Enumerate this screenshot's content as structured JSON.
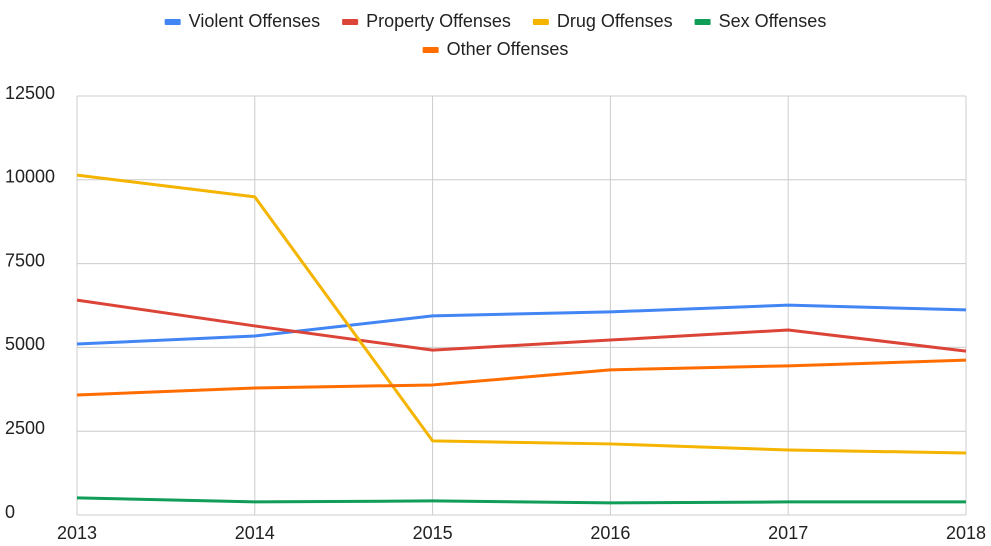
{
  "chart_data": {
    "type": "line",
    "categories": [
      "2013",
      "2014",
      "2015",
      "2016",
      "2017",
      "2018"
    ],
    "series": [
      {
        "name": "Violent Offenses",
        "color": "#4285f4",
        "values": [
          5100,
          5340,
          5940,
          6060,
          6260,
          6120
        ]
      },
      {
        "name": "Property Offenses",
        "color": "#db4437",
        "values": [
          6410,
          5640,
          4920,
          5220,
          5520,
          4890
        ]
      },
      {
        "name": "Drug Offenses",
        "color": "#f4b400",
        "values": [
          10140,
          9490,
          2210,
          2120,
          1940,
          1850
        ]
      },
      {
        "name": "Sex Offenses",
        "color": "#0f9d58",
        "values": [
          510,
          390,
          420,
          360,
          390,
          390
        ]
      },
      {
        "name": "Other Offenses",
        "color": "#ff6d01",
        "values": [
          3580,
          3790,
          3880,
          4330,
          4450,
          4620
        ]
      }
    ],
    "ylim": [
      0,
      12500
    ],
    "yticks": [
      0,
      2500,
      5000,
      7500,
      10000,
      12500
    ],
    "grid": true,
    "legend": "top"
  }
}
